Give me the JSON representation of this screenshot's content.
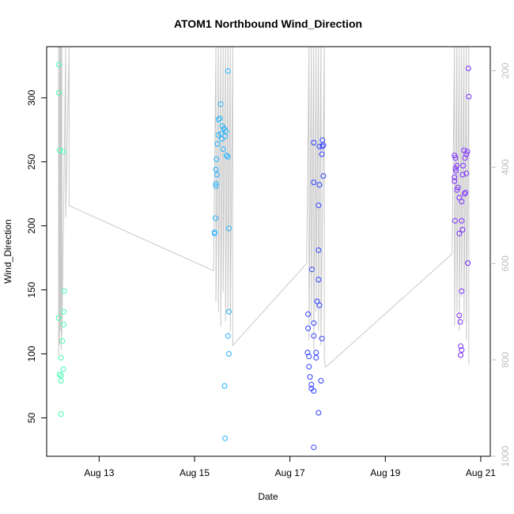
{
  "chart_data": {
    "type": "scatter",
    "title": "ATOM1 Northbound Wind_Direction",
    "xlabel": "Date",
    "ylabel": "Wind_Direction",
    "x_unit": "days since Aug 12 00:00",
    "xlim": [
      11.9,
      21.2
    ],
    "ylim": [
      20,
      340
    ],
    "x_ticks": [
      {
        "value": 13,
        "label": "Aug 13"
      },
      {
        "value": 15,
        "label": "Aug 15"
      },
      {
        "value": 17,
        "label": "Aug 17"
      },
      {
        "value": 19,
        "label": "Aug 19"
      },
      {
        "value": 21,
        "label": "Aug 21"
      }
    ],
    "y_ticks": [
      50,
      100,
      150,
      200,
      250,
      300
    ],
    "y2_ticks": [
      200,
      400,
      600,
      800,
      1000
    ],
    "y2_range": [
      1000,
      150
    ],
    "colors": {
      "group1": "#40ffb0",
      "group2": "#1fb3ff",
      "group3": "#2e40ff",
      "group4": "#7a2bff",
      "line": "#c8c8c8",
      "axis": "#000000",
      "axis_right": "#bdbdbd"
    },
    "series": [
      {
        "name": "Wind_Direction",
        "groups": [
          {
            "color_key": "group1",
            "points": [
              [
                12.15,
                326
              ],
              [
                12.15,
                304
              ],
              [
                12.17,
                259
              ],
              [
                12.25,
                258
              ],
              [
                12.15,
                128
              ],
              [
                12.27,
                149
              ],
              [
                12.26,
                133
              ],
              [
                12.26,
                123
              ],
              [
                12.23,
                110
              ],
              [
                12.2,
                97
              ],
              [
                12.25,
                88
              ],
              [
                12.17,
                84
              ],
              [
                12.2,
                83
              ],
              [
                12.2,
                79
              ],
              [
                12.2,
                53
              ]
            ]
          },
          {
            "color_key": "group2",
            "points": [
              [
                15.55,
                295
              ],
              [
                15.53,
                284
              ],
              [
                15.5,
                283
              ],
              [
                15.58,
                278
              ],
              [
                15.62,
                276
              ],
              [
                15.66,
                274
              ],
              [
                15.56,
                272
              ],
              [
                15.5,
                271
              ],
              [
                15.64,
                270
              ],
              [
                15.57,
                268
              ],
              [
                15.48,
                264
              ],
              [
                15.6,
                260
              ],
              [
                15.67,
                255
              ],
              [
                15.7,
                254
              ],
              [
                15.46,
                252
              ],
              [
                15.45,
                244
              ],
              [
                15.47,
                240
              ],
              [
                15.45,
                233
              ],
              [
                15.45,
                231
              ],
              [
                15.44,
                206
              ],
              [
                15.72,
                198
              ],
              [
                15.42,
                195
              ],
              [
                15.42,
                194
              ],
              [
                15.72,
                133
              ],
              [
                15.7,
                114
              ],
              [
                15.72,
                100
              ],
              [
                15.63,
                75
              ],
              [
                15.64,
                34
              ],
              [
                15.7,
                321
              ]
            ]
          },
          {
            "color_key": "group3",
            "points": [
              [
                17.5,
                265
              ],
              [
                17.68,
                267
              ],
              [
                17.62,
                262
              ],
              [
                17.68,
                262
              ],
              [
                17.7,
                263
              ],
              [
                17.67,
                256
              ],
              [
                17.7,
                239
              ],
              [
                17.5,
                234
              ],
              [
                17.62,
                232
              ],
              [
                17.6,
                216
              ],
              [
                17.6,
                181
              ],
              [
                17.46,
                166
              ],
              [
                17.6,
                158
              ],
              [
                17.57,
                141
              ],
              [
                17.62,
                138
              ],
              [
                17.38,
                131
              ],
              [
                17.5,
                124
              ],
              [
                17.38,
                120
              ],
              [
                17.5,
                114
              ],
              [
                17.67,
                112
              ],
              [
                17.37,
                101
              ],
              [
                17.55,
                101
              ],
              [
                17.4,
                98
              ],
              [
                17.55,
                97
              ],
              [
                17.4,
                90
              ],
              [
                17.42,
                82
              ],
              [
                17.65,
                79
              ],
              [
                17.45,
                76
              ],
              [
                17.45,
                73
              ],
              [
                17.5,
                71
              ],
              [
                17.6,
                54
              ],
              [
                17.5,
                27
              ]
            ]
          },
          {
            "color_key": "group4",
            "points": [
              [
                20.45,
                255
              ],
              [
                20.47,
                253
              ],
              [
                20.5,
                247
              ],
              [
                20.47,
                245
              ],
              [
                20.48,
                243
              ],
              [
                20.45,
                238
              ],
              [
                20.45,
                235
              ],
              [
                20.52,
                230
              ],
              [
                20.5,
                228
              ],
              [
                20.55,
                222
              ],
              [
                20.6,
                219
              ],
              [
                20.46,
                204
              ],
              [
                20.6,
                204
              ],
              [
                20.55,
                194
              ],
              [
                20.62,
                197
              ],
              [
                20.65,
                259
              ],
              [
                20.72,
                258
              ],
              [
                20.7,
                256
              ],
              [
                20.67,
                253
              ],
              [
                20.63,
                247
              ],
              [
                20.62,
                240
              ],
              [
                20.7,
                241
              ],
              [
                20.68,
                226
              ],
              [
                20.66,
                225
              ],
              [
                20.55,
                130
              ],
              [
                20.57,
                125
              ],
              [
                20.6,
                149
              ],
              [
                20.73,
                171
              ],
              [
                20.58,
                106
              ],
              [
                20.6,
                103
              ],
              [
                20.58,
                99
              ],
              [
                20.74,
                323
              ],
              [
                20.75,
                301
              ]
            ]
          }
        ]
      },
      {
        "name": "secondary (right axis, grey lines)",
        "points": [
          [
            12.15,
            150
          ],
          [
            12.15,
            790
          ],
          [
            12.17,
            150
          ],
          [
            12.17,
            770
          ],
          [
            12.19,
            150
          ],
          [
            12.19,
            740
          ],
          [
            12.21,
            150
          ],
          [
            12.21,
            780
          ],
          [
            12.22,
            150
          ],
          [
            12.22,
            750
          ],
          [
            12.3,
            150
          ],
          [
            12.3,
            505
          ],
          [
            12.37,
            150
          ],
          [
            12.37,
            480
          ],
          [
            15.4,
            615
          ],
          [
            15.45,
            150
          ],
          [
            15.45,
            680
          ],
          [
            15.5,
            150
          ],
          [
            15.5,
            700
          ],
          [
            15.55,
            150
          ],
          [
            15.55,
            730
          ],
          [
            15.6,
            150
          ],
          [
            15.6,
            660
          ],
          [
            15.65,
            150
          ],
          [
            15.65,
            720
          ],
          [
            15.7,
            150
          ],
          [
            15.7,
            700
          ],
          [
            15.75,
            150
          ],
          [
            15.75,
            740
          ],
          [
            15.8,
            150
          ],
          [
            15.8,
            770
          ],
          [
            17.35,
            600
          ],
          [
            17.4,
            150
          ],
          [
            17.4,
            760
          ],
          [
            17.45,
            150
          ],
          [
            17.45,
            720
          ],
          [
            17.5,
            150
          ],
          [
            17.5,
            780
          ],
          [
            17.55,
            150
          ],
          [
            17.55,
            700
          ],
          [
            17.6,
            150
          ],
          [
            17.6,
            740
          ],
          [
            17.65,
            150
          ],
          [
            17.65,
            770
          ],
          [
            17.72,
            150
          ],
          [
            17.72,
            800
          ],
          [
            17.75,
            815
          ],
          [
            20.4,
            580
          ],
          [
            20.45,
            150
          ],
          [
            20.45,
            730
          ],
          [
            20.5,
            150
          ],
          [
            20.5,
            700
          ],
          [
            20.55,
            150
          ],
          [
            20.55,
            740
          ],
          [
            20.6,
            150
          ],
          [
            20.6,
            670
          ],
          [
            20.65,
            150
          ],
          [
            20.65,
            720
          ],
          [
            20.7,
            150
          ],
          [
            20.7,
            760
          ],
          [
            20.75,
            150
          ],
          [
            20.75,
            810
          ]
        ]
      }
    ]
  }
}
